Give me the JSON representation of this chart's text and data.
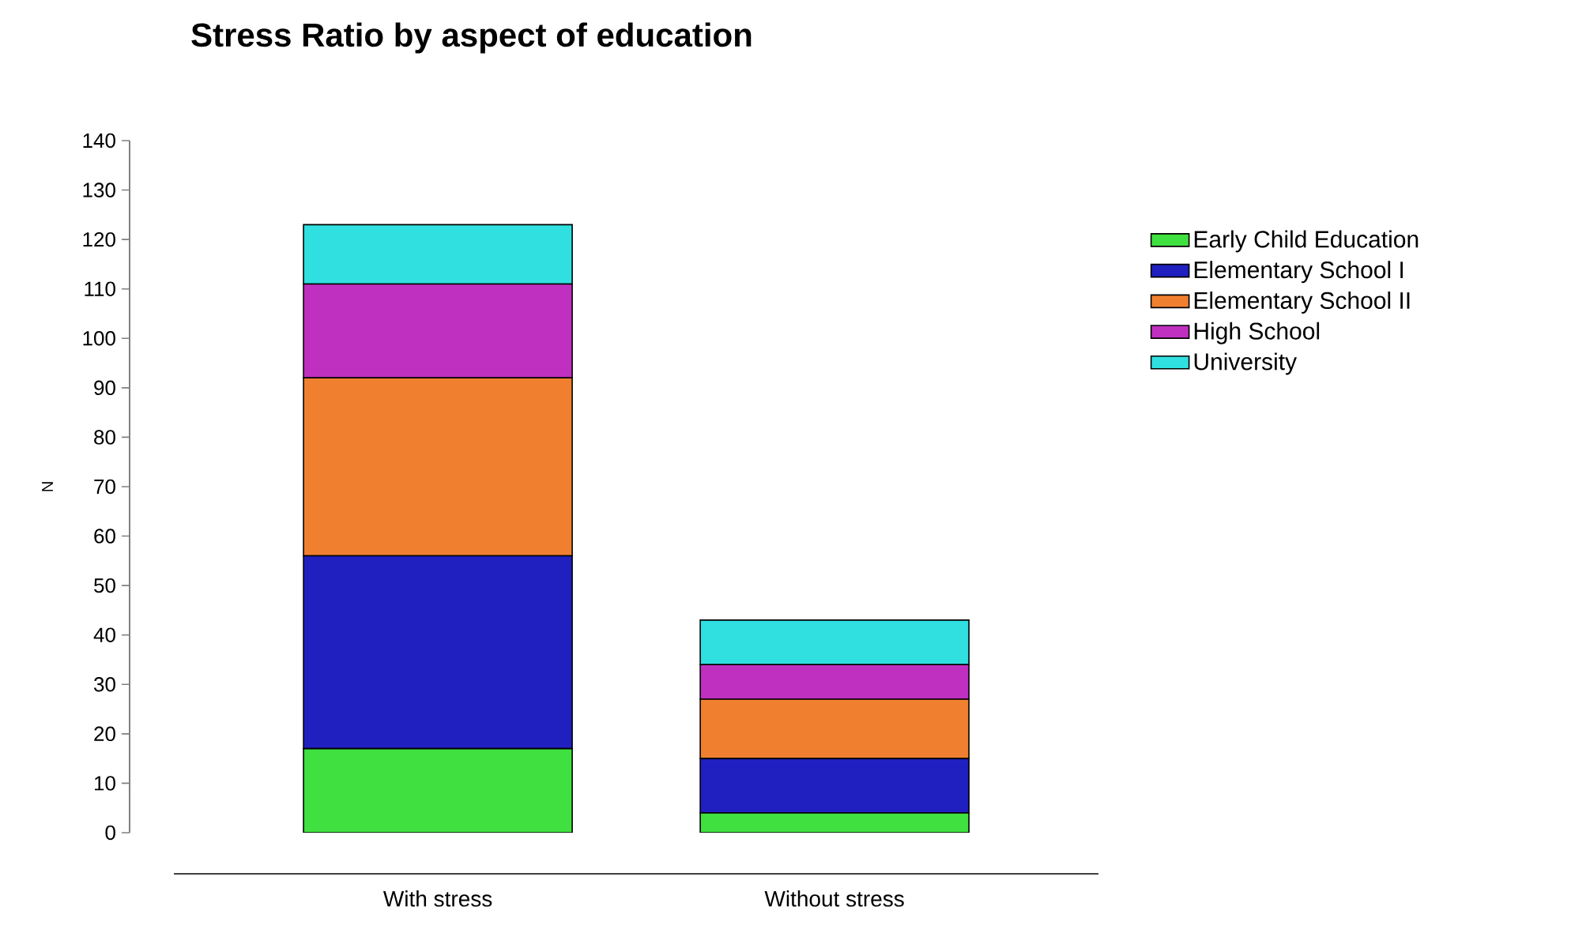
{
  "chart_data": {
    "type": "bar",
    "title": "Stress Ratio by aspect of education",
    "ylabel": "N",
    "categories": [
      "With stress",
      "Without stress"
    ],
    "stacked": true,
    "series": [
      {
        "name": "Early Child Education",
        "color": "#40e040",
        "values": [
          17,
          4
        ]
      },
      {
        "name": "Elementary School I",
        "color": "#2020c0",
        "values": [
          39,
          11
        ]
      },
      {
        "name": "Elementary School II",
        "color": "#f08030",
        "values": [
          36,
          12
        ]
      },
      {
        "name": "High School",
        "color": "#c030c0",
        "values": [
          19,
          7
        ]
      },
      {
        "name": "University",
        "color": "#30e0e0",
        "values": [
          12,
          9
        ]
      }
    ],
    "ylim": [
      0,
      140
    ],
    "yticks": [
      0,
      10,
      20,
      30,
      40,
      50,
      60,
      70,
      80,
      90,
      100,
      110,
      120,
      130,
      140
    ],
    "grid": false,
    "legend": "right"
  }
}
